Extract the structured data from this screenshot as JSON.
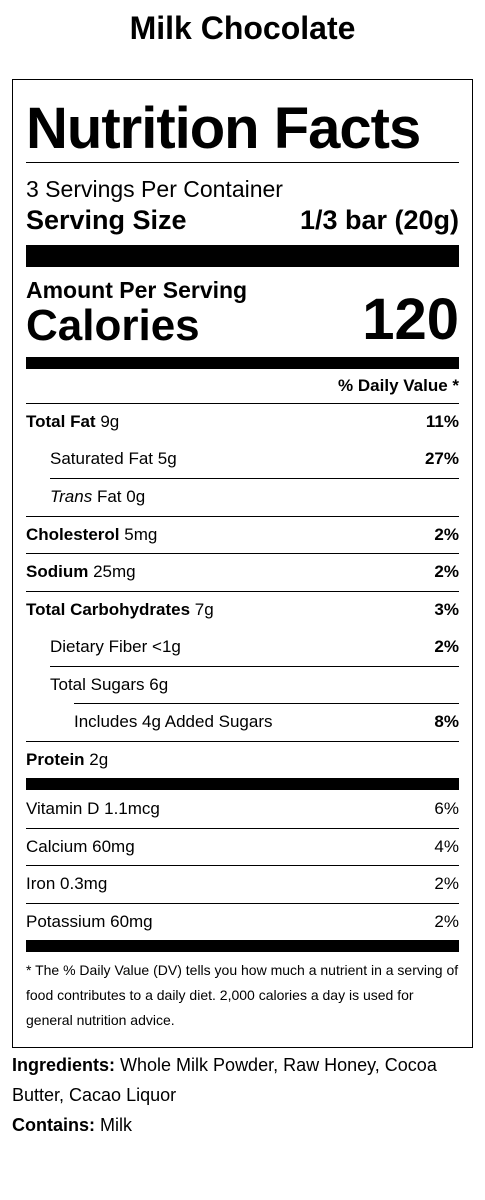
{
  "product": {
    "name": "Milk Chocolate"
  },
  "label": {
    "title": "Nutrition Facts",
    "servings_per_container": "3 Servings Per Container",
    "serving_size_label": "Serving Size",
    "serving_size_value": "1/3 bar (20g)",
    "amount_per_serving": "Amount Per Serving",
    "calories_label": "Calories",
    "calories_value": "120",
    "dv_header": "% Daily Value *",
    "nutrients": [
      {
        "name": "Total Fat",
        "amount": "9g",
        "dv": "11%"
      },
      {
        "name": "Saturated Fat",
        "amount": "5g",
        "dv": "27%"
      },
      {
        "name": "Trans",
        "suffix": "Fat",
        "amount": "0g",
        "dv": ""
      },
      {
        "name": "Cholesterol",
        "amount": "5mg",
        "dv": "2%"
      },
      {
        "name": "Sodium",
        "amount": "25mg",
        "dv": "2%"
      },
      {
        "name": "Total Carbohydrates",
        "amount": "7g",
        "dv": "3%"
      },
      {
        "name": "Dietary Fiber",
        "amount": "<1g",
        "dv": "2%"
      },
      {
        "name": "Total Sugars",
        "amount": "6g",
        "dv": ""
      },
      {
        "name": "Includes 4g Added Sugars",
        "amount": "",
        "dv": "8%"
      },
      {
        "name": "Protein",
        "amount": "2g",
        "dv": ""
      }
    ],
    "vitamins": [
      {
        "name": "Vitamin D",
        "amount": "1.1mcg",
        "dv": "6%"
      },
      {
        "name": "Calcium",
        "amount": "60mg",
        "dv": "4%"
      },
      {
        "name": "Iron",
        "amount": "0.3mg",
        "dv": "2%"
      },
      {
        "name": "Potassium",
        "amount": "60mg",
        "dv": "2%"
      }
    ],
    "footnote": "* The % Daily Value (DV) tells you how much a nutrient in a serving of food contributes to a daily diet. 2,000 calories a day is used for general nutrition advice."
  },
  "ingredients": {
    "label": "Ingredients:",
    "text": "Whole Milk Powder, Raw Honey, Cocoa Butter, Cacao Liquor",
    "contains_label": "Contains:",
    "contains_text": "Milk"
  }
}
